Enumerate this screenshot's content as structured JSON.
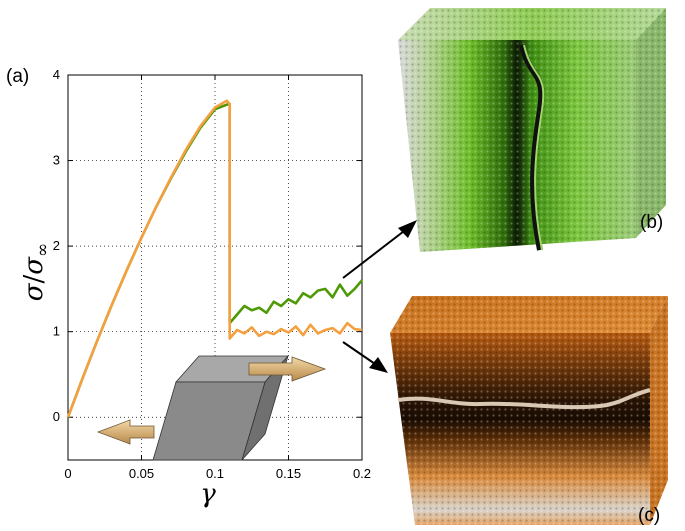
{
  "panel_labels": {
    "a": "(a)",
    "b": "(b)",
    "c": "(c)"
  },
  "chart_data": {
    "type": "line",
    "xlabel": "γ",
    "ylabel": {
      "sigma": "σ",
      "slash": "/",
      "sigma_inf": "σ",
      "inf": "∞"
    },
    "xlim": [
      0,
      0.2
    ],
    "ylim": [
      -0.5,
      4
    ],
    "xticks": [
      0,
      0.05,
      0.1,
      0.15,
      0.2
    ],
    "xtick_labels": [
      "0",
      "0.05",
      "0.1",
      "0.15",
      "0.2"
    ],
    "yticks": [
      0,
      1,
      2,
      3,
      4
    ],
    "ytick_labels": [
      "0",
      "1",
      "2",
      "3",
      "4"
    ],
    "grid": true,
    "series": [
      {
        "color": "#4e9a06",
        "x": [
          0,
          0.01,
          0.02,
          0.03,
          0.04,
          0.05,
          0.06,
          0.07,
          0.08,
          0.09,
          0.1,
          0.109,
          0.11,
          0.11,
          0.115,
          0.12,
          0.125,
          0.13,
          0.135,
          0.14,
          0.145,
          0.15,
          0.155,
          0.16,
          0.165,
          0.17,
          0.175,
          0.18,
          0.185,
          0.19,
          0.195,
          0.2
        ],
        "y": [
          0,
          0.46,
          0.9,
          1.32,
          1.72,
          2.1,
          2.46,
          2.79,
          3.1,
          3.38,
          3.6,
          3.66,
          3.66,
          1.1,
          1.2,
          1.3,
          1.25,
          1.28,
          1.22,
          1.35,
          1.3,
          1.38,
          1.33,
          1.45,
          1.4,
          1.48,
          1.5,
          1.4,
          1.55,
          1.42,
          1.5,
          1.6
        ]
      },
      {
        "color": "#f5a040",
        "x": [
          0,
          0.01,
          0.02,
          0.03,
          0.04,
          0.05,
          0.06,
          0.07,
          0.08,
          0.09,
          0.1,
          0.108,
          0.109,
          0.11,
          0.11,
          0.115,
          0.12,
          0.125,
          0.13,
          0.135,
          0.14,
          0.145,
          0.15,
          0.155,
          0.16,
          0.165,
          0.17,
          0.175,
          0.18,
          0.185,
          0.19,
          0.195,
          0.2
        ],
        "y": [
          0,
          0.46,
          0.9,
          1.32,
          1.72,
          2.1,
          2.46,
          2.8,
          3.12,
          3.4,
          3.62,
          3.7,
          3.68,
          3.66,
          0.92,
          1.02,
          0.98,
          1.05,
          0.95,
          1.0,
          0.97,
          1.03,
          0.99,
          1.06,
          0.96,
          1.08,
          0.98,
          1.02,
          1.04,
          0.98,
          1.1,
          1.03,
          1.02
        ]
      }
    ]
  }
}
